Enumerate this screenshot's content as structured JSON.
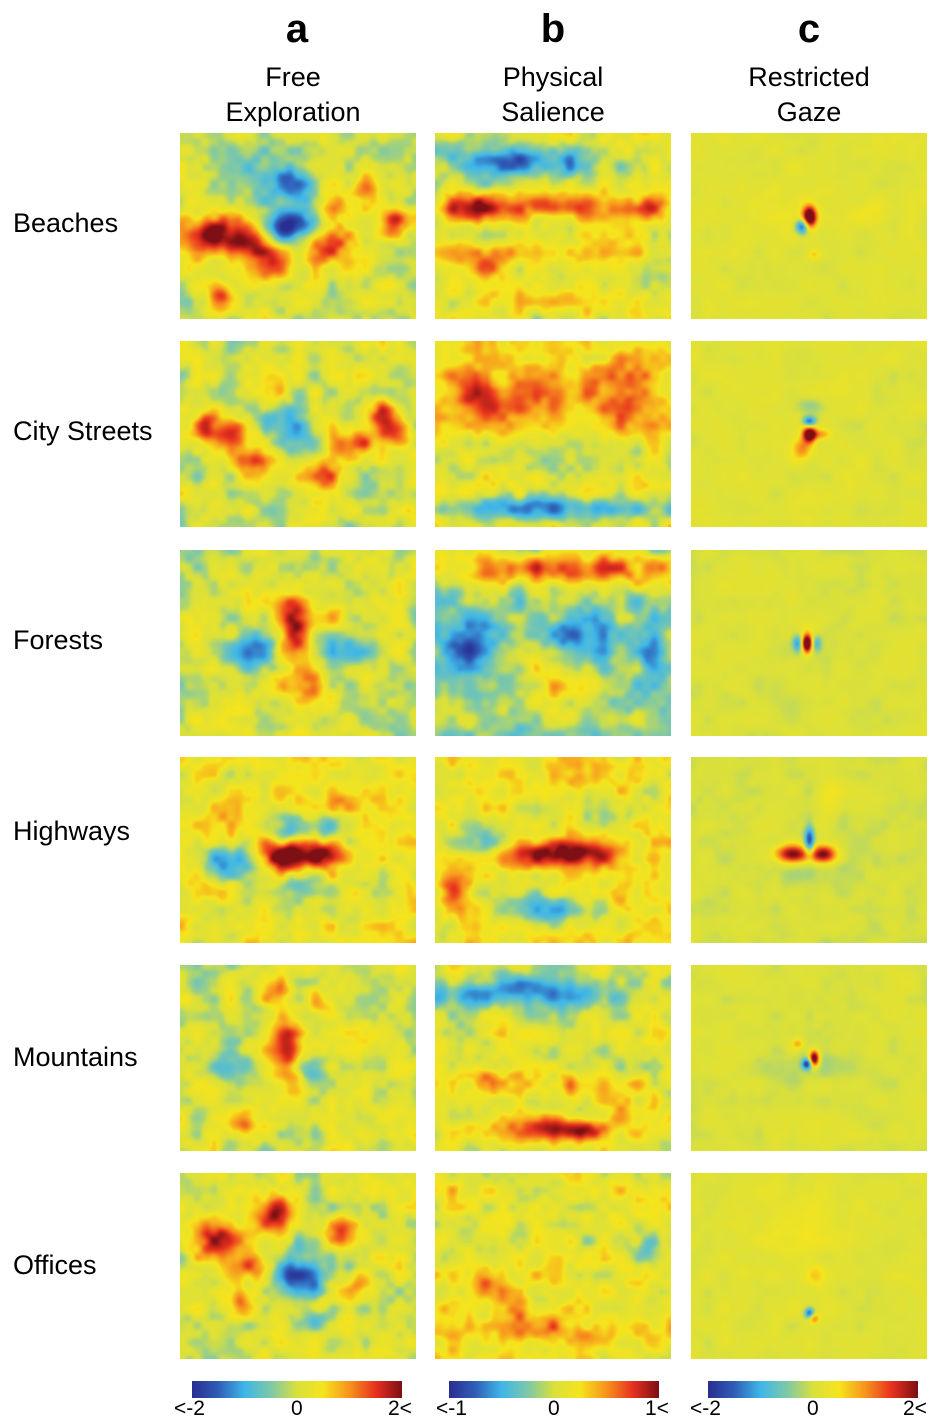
{
  "chart_data": {
    "type": "heatmap",
    "columns": [
      {
        "letter": "a",
        "title_line1": "Free",
        "title_line2": "Exploration",
        "colorbar": {
          "min_label": "<-2",
          "mid_label": "0",
          "max_label": "2<",
          "range": [
            -2,
            2
          ]
        }
      },
      {
        "letter": "b",
        "title_line1": "Physical",
        "title_line2": "Salience",
        "colorbar": {
          "min_label": "<-1",
          "mid_label": "0",
          "max_label": "1<",
          "range": [
            -1,
            1
          ]
        }
      },
      {
        "letter": "c",
        "title_line1": "Restricted",
        "title_line2": "Gaze",
        "colorbar": {
          "min_label": "<-2",
          "mid_label": "0",
          "max_label": "2<",
          "range": [
            -2,
            2
          ]
        }
      }
    ],
    "rows": [
      "Beaches",
      "City Streets",
      "Forests",
      "Highways",
      "Mountains",
      "Offices"
    ],
    "colormap": [
      "#2a2e90",
      "#2f5fb8",
      "#3fb7e8",
      "#7ec8a8",
      "#d9e03c",
      "#f6e41c",
      "#f7941d",
      "#e8321e",
      "#7e0f14"
    ],
    "maps": [
      [
        {
          "base": 0.02,
          "blobs": [
            [
              0.12,
              0.55,
              0.11,
              0.07,
              1.9
            ],
            [
              0.3,
              0.57,
              0.07,
              0.07,
              1.6
            ],
            [
              0.47,
              0.5,
              0.1,
              0.06,
              -2.2
            ],
            [
              0.5,
              0.28,
              0.06,
              0.07,
              -1.5
            ],
            [
              0.62,
              0.6,
              0.08,
              0.08,
              1.5
            ],
            [
              0.38,
              0.72,
              0.07,
              0.06,
              1.4
            ],
            [
              0.9,
              0.48,
              0.04,
              0.06,
              1.4
            ],
            [
              0.18,
              0.88,
              0.04,
              0.05,
              1.2
            ],
            [
              0.7,
              0.4,
              0.08,
              0.06,
              0.8
            ],
            [
              0.35,
              0.22,
              0.1,
              0.08,
              -0.8
            ],
            [
              0.8,
              0.3,
              0.05,
              0.05,
              0.7
            ]
          ]
        },
        {
          "base": 0.02,
          "blobs": [
            [
              0.22,
              0.5,
              0.07,
              0.07,
              1.6
            ],
            [
              0.44,
              0.4,
              0.07,
              0.1,
              -1.3
            ],
            [
              0.4,
              0.28,
              0.06,
              0.06,
              1.4
            ],
            [
              0.72,
              0.55,
              0.06,
              0.06,
              1.5
            ],
            [
              0.85,
              0.4,
              0.05,
              0.06,
              1.2
            ],
            [
              0.1,
              0.45,
              0.04,
              0.05,
              1.5
            ],
            [
              0.3,
              0.65,
              0.05,
              0.05,
              1.2
            ],
            [
              0.6,
              0.72,
              0.05,
              0.05,
              1.2
            ],
            [
              0.5,
              0.55,
              0.06,
              0.06,
              -0.9
            ],
            [
              0.92,
              0.48,
              0.04,
              0.05,
              1.4
            ]
          ]
        },
        {
          "base": 0.0,
          "blobs": [
            [
              0.48,
              0.45,
              0.05,
              0.09,
              1.9
            ],
            [
              0.3,
              0.55,
              0.1,
              0.06,
              -1.3
            ],
            [
              0.7,
              0.55,
              0.1,
              0.06,
              -1.0
            ],
            [
              0.52,
              0.75,
              0.07,
              0.08,
              1.3
            ],
            [
              0.45,
              0.3,
              0.05,
              0.05,
              0.9
            ],
            [
              0.65,
              0.35,
              0.06,
              0.05,
              0.6
            ]
          ]
        },
        {
          "base": 0.15,
          "blobs": [
            [
              0.45,
              0.52,
              0.08,
              0.06,
              2.2
            ],
            [
              0.62,
              0.52,
              0.05,
              0.05,
              1.5
            ],
            [
              0.2,
              0.55,
              0.07,
              0.06,
              -1.6
            ],
            [
              0.45,
              0.38,
              0.05,
              0.06,
              -1.4
            ],
            [
              0.6,
              0.38,
              0.05,
              0.06,
              -1.0
            ],
            [
              0.5,
              0.7,
              0.08,
              0.06,
              -1.0
            ],
            [
              0.7,
              0.25,
              0.06,
              0.05,
              0.5
            ],
            [
              0.3,
              0.3,
              0.1,
              0.08,
              0.3
            ]
          ]
        },
        {
          "base": 0.03,
          "blobs": [
            [
              0.45,
              0.45,
              0.05,
              0.14,
              1.9
            ],
            [
              0.2,
              0.55,
              0.06,
              0.06,
              -1.1
            ],
            [
              0.55,
              0.55,
              0.05,
              0.06,
              -1.0
            ],
            [
              0.4,
              0.15,
              0.04,
              0.05,
              1.0
            ],
            [
              0.25,
              0.85,
              0.04,
              0.05,
              1.0
            ],
            [
              0.6,
              0.2,
              0.05,
              0.05,
              0.7
            ]
          ]
        },
        {
          "base": 0.05,
          "blobs": [
            [
              0.15,
              0.35,
              0.07,
              0.08,
              1.6
            ],
            [
              0.4,
              0.22,
              0.06,
              0.08,
              1.7
            ],
            [
              0.68,
              0.3,
              0.05,
              0.05,
              1.3
            ],
            [
              0.5,
              0.55,
              0.08,
              0.1,
              -1.8
            ],
            [
              0.57,
              0.75,
              0.05,
              0.05,
              -1.2
            ],
            [
              0.58,
              0.72,
              0.04,
              0.04,
              1.8
            ],
            [
              0.25,
              0.7,
              0.05,
              0.06,
              1.2
            ],
            [
              0.3,
              0.5,
              0.05,
              0.05,
              1.3
            ],
            [
              0.75,
              0.6,
              0.05,
              0.05,
              0.8
            ]
          ]
        }
      ],
      [
        {
          "base": 0.1,
          "blobs": [
            [
              0.35,
              0.15,
              0.25,
              0.07,
              -1.6
            ],
            [
              0.5,
              0.4,
              0.35,
              0.05,
              0.9
            ],
            [
              0.15,
              0.4,
              0.07,
              0.05,
              1.2
            ],
            [
              0.9,
              0.4,
              0.05,
              0.05,
              1.0
            ],
            [
              0.5,
              0.65,
              0.35,
              0.05,
              0.5
            ],
            [
              0.2,
              0.72,
              0.07,
              0.05,
              0.9
            ],
            [
              0.5,
              0.88,
              0.35,
              0.05,
              0.3
            ]
          ]
        },
        {
          "base": 0.25,
          "blobs": [
            [
              0.2,
              0.3,
              0.12,
              0.1,
              0.9
            ],
            [
              0.8,
              0.3,
              0.1,
              0.12,
              0.9
            ],
            [
              0.5,
              0.9,
              0.45,
              0.05,
              -1.8
            ],
            [
              0.5,
              0.65,
              0.35,
              0.08,
              -0.7
            ],
            [
              0.5,
              0.3,
              0.12,
              0.08,
              0.5
            ]
          ]
        },
        {
          "base": -0.2,
          "blobs": [
            [
              0.5,
              0.1,
              0.45,
              0.07,
              1.8
            ],
            [
              0.15,
              0.5,
              0.07,
              0.1,
              -1.2
            ],
            [
              0.6,
              0.45,
              0.08,
              0.08,
              -1.0
            ],
            [
              0.92,
              0.55,
              0.04,
              0.08,
              -1.0
            ],
            [
              0.55,
              0.75,
              0.1,
              0.08,
              1.0
            ],
            [
              0.4,
              0.6,
              0.06,
              0.06,
              0.6
            ],
            [
              0.5,
              0.9,
              0.35,
              0.05,
              0.3
            ]
          ]
        },
        {
          "base": 0.2,
          "blobs": [
            [
              0.55,
              0.52,
              0.15,
              0.05,
              2.0
            ],
            [
              0.5,
              0.82,
              0.15,
              0.06,
              -1.4
            ],
            [
              0.2,
              0.45,
              0.1,
              0.07,
              -0.8
            ],
            [
              0.7,
              0.3,
              0.15,
              0.06,
              -0.6
            ],
            [
              0.08,
              0.72,
              0.04,
              0.05,
              1.2
            ],
            [
              0.6,
              0.15,
              0.04,
              0.04,
              0.6
            ],
            [
              0.75,
              0.75,
              0.1,
              0.05,
              0.4
            ]
          ]
        },
        {
          "base": 0.05,
          "blobs": [
            [
              0.35,
              0.15,
              0.3,
              0.06,
              -1.4
            ],
            [
              0.2,
              0.6,
              0.12,
              0.06,
              0.7
            ],
            [
              0.6,
              0.65,
              0.2,
              0.05,
              0.6
            ],
            [
              0.5,
              0.88,
              0.3,
              0.05,
              0.8
            ],
            [
              0.58,
              0.88,
              0.1,
              0.04,
              1.0
            ],
            [
              0.8,
              0.75,
              0.1,
              0.05,
              0.5
            ],
            [
              0.5,
              0.4,
              0.3,
              0.05,
              0.2
            ]
          ]
        },
        {
          "base": 0.15,
          "blobs": [
            [
              0.5,
              0.85,
              0.35,
              0.05,
              0.7
            ],
            [
              0.2,
              0.6,
              0.06,
              0.06,
              0.8
            ],
            [
              0.9,
              0.4,
              0.04,
              0.06,
              -0.9
            ],
            [
              0.5,
              0.35,
              0.3,
              0.06,
              -0.3
            ],
            [
              0.35,
              0.75,
              0.1,
              0.05,
              0.5
            ]
          ]
        }
      ],
      [
        {
          "base": 0.05,
          "blobs": [
            [
              0.5,
              0.45,
              0.02,
              0.04,
              2.5
            ],
            [
              0.47,
              0.5,
              0.02,
              0.03,
              -1.8
            ],
            [
              0.52,
              0.65,
              0.02,
              0.02,
              0.6
            ],
            [
              0.4,
              0.4,
              0.12,
              0.1,
              0.2
            ],
            [
              0.75,
              0.4,
              0.08,
              0.06,
              0.2
            ]
          ]
        },
        {
          "base": 0.05,
          "blobs": [
            [
              0.5,
              0.5,
              0.02,
              0.03,
              2.5
            ],
            [
              0.5,
              0.43,
              0.02,
              0.02,
              -1.6
            ],
            [
              0.47,
              0.58,
              0.03,
              0.04,
              1.0
            ],
            [
              0.55,
              0.5,
              0.03,
              0.02,
              0.8
            ],
            [
              0.5,
              0.35,
              0.04,
              0.03,
              -0.5
            ]
          ]
        },
        {
          "base": 0.02,
          "blobs": [
            [
              0.49,
              0.5,
              0.015,
              0.035,
              2.8
            ],
            [
              0.45,
              0.5,
              0.015,
              0.03,
              -1.2
            ],
            [
              0.53,
              0.5,
              0.015,
              0.03,
              -0.9
            ],
            [
              0.5,
              0.4,
              0.04,
              0.04,
              0.3
            ],
            [
              0.3,
              0.2,
              0.1,
              0.08,
              0.15
            ]
          ]
        },
        {
          "base": 0.0,
          "blobs": [
            [
              0.43,
              0.52,
              0.05,
              0.035,
              2.2
            ],
            [
              0.56,
              0.52,
              0.04,
              0.035,
              2.1
            ],
            [
              0.5,
              0.45,
              0.015,
              0.06,
              -1.7
            ],
            [
              0.6,
              0.2,
              0.05,
              0.06,
              0.4
            ],
            [
              0.5,
              0.6,
              0.15,
              0.08,
              -0.2
            ]
          ]
        },
        {
          "base": 0.03,
          "blobs": [
            [
              0.52,
              0.5,
              0.015,
              0.03,
              2.6
            ],
            [
              0.49,
              0.53,
              0.015,
              0.02,
              -1.8
            ],
            [
              0.45,
              0.42,
              0.02,
              0.02,
              0.8
            ],
            [
              0.5,
              0.55,
              0.15,
              0.06,
              -0.3
            ]
          ]
        },
        {
          "base": 0.05,
          "blobs": [
            [
              0.5,
              0.75,
              0.015,
              0.02,
              -1.6
            ],
            [
              0.52,
              0.78,
              0.015,
              0.02,
              1.0
            ],
            [
              0.45,
              0.3,
              0.12,
              0.12,
              0.3
            ],
            [
              0.53,
              0.55,
              0.03,
              0.04,
              0.5
            ]
          ]
        }
      ]
    ]
  }
}
